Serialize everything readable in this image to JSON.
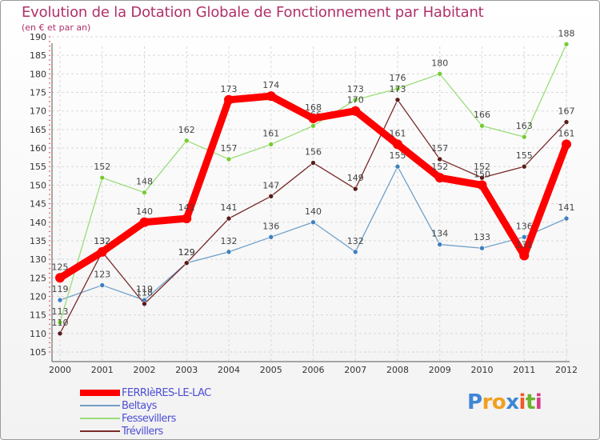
{
  "chart_data": {
    "type": "line",
    "title": "Evolution de la Dotation Globale de Fonctionnement par Habitant",
    "subtitle": "(en € et par an)",
    "xlabel": "",
    "ylabel": "",
    "ylim": [
      105,
      190
    ],
    "yticks": [
      105,
      110,
      115,
      120,
      125,
      130,
      135,
      140,
      145,
      150,
      155,
      160,
      165,
      170,
      175,
      180,
      185,
      190
    ],
    "categories": [
      "2000",
      "2001",
      "2002",
      "2003",
      "2004",
      "2005",
      "2006",
      "2007",
      "2008",
      "2009",
      "2010",
      "2011",
      "2012"
    ],
    "series": [
      {
        "name": "FERRIèRES-LE-LAC",
        "color": "#ff0000",
        "values": [
          125,
          132,
          140,
          141,
          173,
          174,
          168,
          170,
          161,
          152,
          150,
          131,
          161
        ]
      },
      {
        "name": "Beltays",
        "color": "#6fa0c8",
        "values": [
          119,
          123,
          119,
          129,
          132,
          136,
          140,
          132,
          155,
          134,
          133,
          136,
          141
        ]
      },
      {
        "name": "Fessevillers",
        "color": "#99dd77",
        "values": [
          113,
          152,
          148,
          162,
          157,
          161,
          166,
          173,
          176,
          180,
          166,
          163,
          188
        ]
      },
      {
        "name": "Trévillers",
        "color": "#7a2a2a",
        "values": [
          110,
          132,
          118,
          129,
          141,
          147,
          156,
          149,
          173,
          157,
          152,
          155,
          167
        ]
      }
    ],
    "grid": true,
    "legend_position": "bottom-left"
  },
  "logo": {
    "text": "Proxiti"
  }
}
